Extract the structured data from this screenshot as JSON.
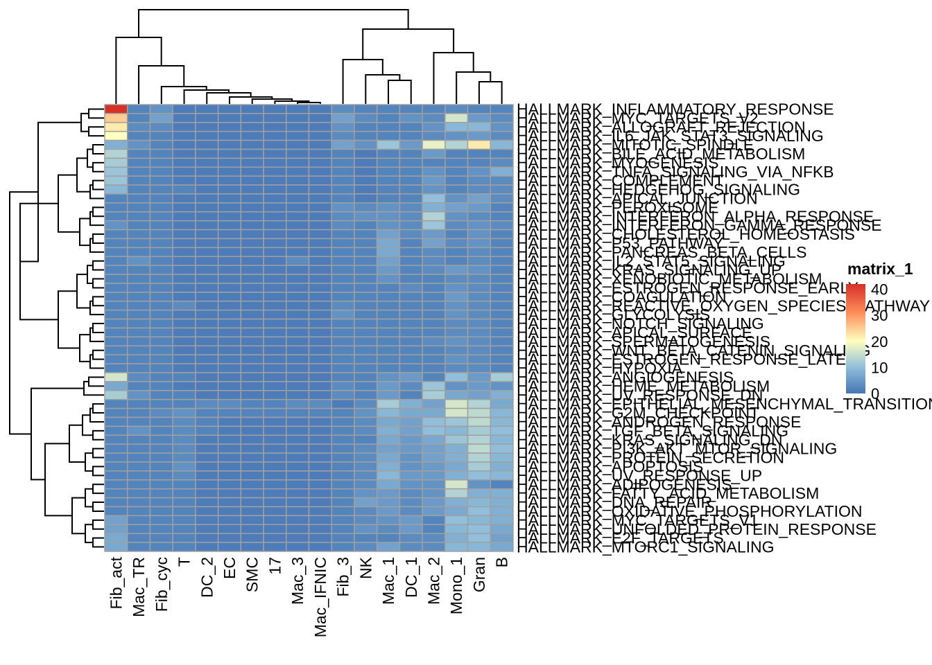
{
  "chart_data": {
    "type": "heatmap",
    "legend": {
      "title": "matrix_1",
      "ticks": [
        0,
        10,
        20,
        30,
        40
      ],
      "range": [
        0,
        42
      ],
      "placement": "right"
    },
    "colors": {
      "low": "#4575b4",
      "mid": "#ffffbf",
      "high": "#d73027",
      "grid": "#a0a0a0",
      "dendrogram": "#000000"
    },
    "columns": [
      "Fib_act",
      "Mac_TR",
      "Fib_cyc",
      "T",
      "DC_2",
      "EC",
      "SMC",
      "17",
      "Mac_3",
      "Mac_IFNIC",
      "Fib_3",
      "NK",
      "Mac_1",
      "DC_1",
      "Mac_2",
      "Mono_1",
      "Gran",
      "B"
    ],
    "rows": [
      "HALLMARK_INFLAMMATORY_RESPONSE",
      "HALLMARK_MYC_TARGETS_V2",
      "HALLMARK_ALLOGRAFT_REJECTION",
      "HALLMARK_IL6_JAK_STAT3_SIGNALING",
      "HALLMARK_MITOTIC_SPINDLE",
      "HALLMARK_BILE_ACID_METABOLISM",
      "HALLMARK_MYOGENESIS",
      "HALLMARK_TNFA_SIGNALING_VIA_NFKB",
      "HALLMARK_COMPLEMENT",
      "HALLMARK_HEDGEHOG_SIGNALING",
      "HALLMARK_APICAL_JUNCTION",
      "HALLMARK_PEROXISOME",
      "HALLMARK_INTERFERON_ALPHA_RESPONSE",
      "HALLMARK_INTERFERON_GAMMA_RESPONSE",
      "HALLMARK_CHOLESTEROL_HOMEOSTASIS",
      "HALLMARK_P53_PATHWAY",
      "HALLMARK_PANCREAS_BETA_CELLS",
      "HALLMARK_IL2_STAT5_SIGNALING",
      "HALLMARK_KRAS_SIGNALING_UP",
      "HALLMARK_XENOBIOTIC_METABOLISM",
      "HALLMARK_ESTROGEN_RESPONSE_EARLY",
      "HALLMARK_COAGULATION",
      "HALLMARK_REACTIVE_OXYGEN_SPECIES_PATHWAY",
      "HALLMARK_GLYCOLYSIS",
      "HALLMARK_NOTCH_SIGNALING",
      "HALLMARK_APICAL_SURFACE",
      "HALLMARK_SPERMATOGENESIS",
      "HALLMARK_WNT_BETA_CATENIN_SIGNALING",
      "HALLMARK_ESTROGEN_RESPONSE_LATE",
      "HALLMARK_HYPOXIA",
      "HALLMARK_ANGIOGENESIS",
      "HALLMARK_HEME_METABOLISM",
      "HALLMARK_UV_RESPONSE_DN",
      "HALLMARK_EPITHELIAL_MESENCHYMAL_TRANSITION",
      "HALLMARK_G2M_CHECKPOINT",
      "HALLMARK_ANDROGEN_RESPONSE",
      "HALLMARK_TGF_BETA_SIGNALING",
      "HALLMARK_KRAS_SIGNALING_DN",
      "HALLMARK_PI3K_AKT_MTOR_SIGNALING",
      "HALLMARK_PROTEIN_SECRETION",
      "HALLMARK_APOPTOSIS",
      "HALLMARK_UV_RESPONSE_UP",
      "HALLMARK_ADIPOGENESIS",
      "HALLMARK_FATTY_ACID_METABOLISM",
      "HALLMARK_DNA_REPAIR",
      "HALLMARK_OXIDATIVE_PHOSPHORYLATION",
      "HALLMARK_MYC_TARGETS_V1",
      "HALLMARK_UNFOLDED_PROTEIN_RESPONSE",
      "HALLMARK_E2F_TARGETS",
      "HALLMARK_MTORC1_SIGNALING"
    ],
    "values": [
      [
        42,
        2,
        4,
        1,
        1,
        1,
        1,
        1,
        1,
        1,
        3,
        2,
        2,
        2,
        2,
        3,
        2,
        2
      ],
      [
        25,
        2,
        6,
        1,
        1,
        1,
        1,
        1,
        1,
        1,
        6,
        3,
        2,
        4,
        3,
        16,
        5,
        3
      ],
      [
        22,
        3,
        3,
        1,
        1,
        1,
        1,
        1,
        1,
        1,
        4,
        2,
        2,
        2,
        4,
        9,
        9,
        4
      ],
      [
        20,
        2,
        2,
        1,
        1,
        1,
        1,
        1,
        1,
        1,
        3,
        2,
        2,
        2,
        3,
        4,
        5,
        3
      ],
      [
        8,
        4,
        2,
        1,
        1,
        1,
        1,
        1,
        1,
        1,
        6,
        4,
        11,
        5,
        18,
        13,
        22,
        9
      ],
      [
        13,
        2,
        2,
        1,
        1,
        1,
        1,
        1,
        1,
        1,
        2,
        1,
        2,
        2,
        5,
        2,
        2,
        2
      ],
      [
        12,
        2,
        2,
        1,
        1,
        1,
        1,
        1,
        1,
        1,
        2,
        1,
        2,
        2,
        2,
        2,
        2,
        3
      ],
      [
        11,
        2,
        2,
        1,
        1,
        1,
        1,
        1,
        1,
        1,
        2,
        1,
        2,
        2,
        4,
        2,
        4,
        8
      ],
      [
        11,
        2,
        2,
        1,
        1,
        1,
        1,
        1,
        1,
        1,
        2,
        1,
        2,
        2,
        5,
        2,
        3,
        3
      ],
      [
        9,
        2,
        2,
        2,
        1,
        1,
        1,
        1,
        1,
        1,
        2,
        1,
        2,
        2,
        4,
        2,
        3,
        3
      ],
      [
        2,
        2,
        2,
        1,
        1,
        1,
        1,
        1,
        1,
        1,
        2,
        1,
        2,
        2,
        10,
        4,
        6,
        3
      ],
      [
        2,
        2,
        2,
        1,
        1,
        1,
        1,
        1,
        1,
        1,
        4,
        3,
        4,
        3,
        8,
        6,
        5,
        2
      ],
      [
        2,
        2,
        2,
        1,
        1,
        1,
        1,
        1,
        1,
        1,
        3,
        4,
        4,
        3,
        13,
        4,
        3,
        2
      ],
      [
        4,
        2,
        2,
        1,
        1,
        1,
        1,
        1,
        1,
        1,
        3,
        2,
        4,
        3,
        11,
        3,
        4,
        3
      ],
      [
        2,
        2,
        2,
        1,
        1,
        1,
        1,
        1,
        1,
        1,
        2,
        2,
        6,
        3,
        5,
        2,
        4,
        2
      ],
      [
        2,
        2,
        2,
        1,
        1,
        1,
        1,
        1,
        1,
        1,
        2,
        2,
        7,
        2,
        6,
        3,
        4,
        2
      ],
      [
        2,
        2,
        2,
        1,
        1,
        1,
        1,
        1,
        1,
        1,
        2,
        2,
        7,
        2,
        3,
        2,
        3,
        2
      ],
      [
        2,
        4,
        2,
        1,
        1,
        1,
        1,
        1,
        3,
        1,
        2,
        2,
        6,
        2,
        3,
        2,
        3,
        2
      ],
      [
        2,
        2,
        2,
        1,
        1,
        1,
        1,
        1,
        1,
        1,
        2,
        2,
        5,
        2,
        3,
        5,
        4,
        2
      ],
      [
        2,
        2,
        2,
        1,
        1,
        1,
        1,
        1,
        1,
        1,
        2,
        2,
        4,
        2,
        2,
        3,
        3,
        2
      ],
      [
        2,
        2,
        2,
        1,
        1,
        1,
        1,
        1,
        1,
        1,
        2,
        2,
        2,
        3,
        2,
        4,
        3,
        2
      ],
      [
        2,
        2,
        2,
        1,
        1,
        1,
        1,
        1,
        1,
        1,
        2,
        2,
        2,
        2,
        2,
        5,
        3,
        2
      ],
      [
        2,
        2,
        2,
        3,
        1,
        1,
        1,
        1,
        1,
        1,
        3,
        2,
        2,
        2,
        2,
        4,
        3,
        2
      ],
      [
        2,
        2,
        2,
        1,
        1,
        1,
        1,
        1,
        1,
        1,
        4,
        2,
        2,
        2,
        2,
        4,
        3,
        2
      ],
      [
        2,
        2,
        2,
        1,
        1,
        1,
        1,
        1,
        1,
        1,
        2,
        2,
        2,
        2,
        2,
        3,
        3,
        2
      ],
      [
        2,
        2,
        2,
        1,
        1,
        1,
        1,
        1,
        1,
        1,
        2,
        2,
        2,
        2,
        2,
        3,
        3,
        2
      ],
      [
        2,
        2,
        2,
        1,
        1,
        1,
        1,
        1,
        1,
        1,
        2,
        2,
        2,
        2,
        3,
        4,
        3,
        2
      ],
      [
        2,
        2,
        2,
        1,
        1,
        1,
        1,
        1,
        1,
        1,
        2,
        2,
        2,
        2,
        2,
        3,
        3,
        2
      ],
      [
        2,
        2,
        2,
        1,
        1,
        1,
        1,
        1,
        1,
        1,
        2,
        2,
        2,
        2,
        2,
        4,
        3,
        2
      ],
      [
        2,
        2,
        2,
        1,
        1,
        1,
        1,
        1,
        1,
        1,
        2,
        2,
        2,
        2,
        2,
        3,
        3,
        2
      ],
      [
        16,
        3,
        2,
        2,
        1,
        1,
        1,
        1,
        1,
        1,
        2,
        2,
        4,
        5,
        2,
        10,
        5,
        12
      ],
      [
        7,
        2,
        2,
        1,
        1,
        1,
        1,
        1,
        1,
        1,
        3,
        2,
        5,
        3,
        11,
        4,
        5,
        4
      ],
      [
        12,
        4,
        2,
        2,
        1,
        1,
        1,
        1,
        1,
        1,
        3,
        2,
        5,
        2,
        12,
        7,
        6,
        8
      ],
      [
        2,
        2,
        2,
        2,
        3,
        3,
        2,
        2,
        3,
        3,
        1,
        3,
        12,
        8,
        6,
        16,
        13,
        7
      ],
      [
        2,
        2,
        3,
        4,
        2,
        2,
        2,
        2,
        2,
        2,
        2,
        4,
        9,
        7,
        7,
        16,
        14,
        9
      ],
      [
        2,
        2,
        2,
        3,
        2,
        1,
        1,
        1,
        1,
        1,
        2,
        3,
        7,
        6,
        10,
        11,
        14,
        9
      ],
      [
        2,
        4,
        2,
        3,
        2,
        1,
        1,
        1,
        1,
        1,
        2,
        3,
        8,
        6,
        10,
        9,
        12,
        10
      ],
      [
        2,
        2,
        2,
        3,
        1,
        1,
        1,
        1,
        1,
        1,
        2,
        2,
        7,
        5,
        7,
        11,
        13,
        9
      ],
      [
        2,
        2,
        2,
        3,
        1,
        1,
        1,
        1,
        1,
        1,
        2,
        3,
        6,
        5,
        6,
        8,
        14,
        10
      ],
      [
        2,
        2,
        2,
        3,
        1,
        1,
        1,
        1,
        1,
        1,
        2,
        3,
        7,
        4,
        6,
        8,
        13,
        9
      ],
      [
        2,
        2,
        2,
        4,
        1,
        1,
        1,
        1,
        1,
        1,
        2,
        3,
        8,
        4,
        5,
        7,
        12,
        8
      ],
      [
        2,
        2,
        2,
        3,
        1,
        1,
        1,
        1,
        1,
        1,
        2,
        3,
        9,
        5,
        5,
        8,
        10,
        9
      ],
      [
        2,
        2,
        2,
        2,
        1,
        1,
        1,
        1,
        1,
        1,
        2,
        3,
        7,
        4,
        4,
        16,
        4,
        2
      ],
      [
        2,
        2,
        2,
        2,
        1,
        1,
        1,
        1,
        1,
        1,
        2,
        4,
        5,
        3,
        4,
        13,
        8,
        8
      ],
      [
        2,
        2,
        2,
        2,
        1,
        1,
        1,
        1,
        1,
        1,
        2,
        6,
        5,
        3,
        5,
        8,
        9,
        8
      ],
      [
        2,
        2,
        2,
        2,
        1,
        1,
        1,
        1,
        1,
        1,
        2,
        3,
        5,
        3,
        5,
        7,
        10,
        8
      ],
      [
        6,
        2,
        2,
        2,
        1,
        1,
        1,
        1,
        1,
        1,
        2,
        3,
        4,
        5,
        2,
        10,
        9,
        8
      ],
      [
        6,
        2,
        2,
        2,
        1,
        1,
        1,
        1,
        1,
        1,
        2,
        4,
        3,
        5,
        2,
        9,
        10,
        7
      ],
      [
        7,
        2,
        2,
        2,
        1,
        1,
        1,
        1,
        1,
        1,
        2,
        2,
        2,
        3,
        3,
        8,
        10,
        6
      ],
      [
        7,
        2,
        2,
        2,
        1,
        1,
        1,
        1,
        1,
        1,
        2,
        3,
        6,
        3,
        3,
        9,
        9,
        7
      ]
    ]
  }
}
